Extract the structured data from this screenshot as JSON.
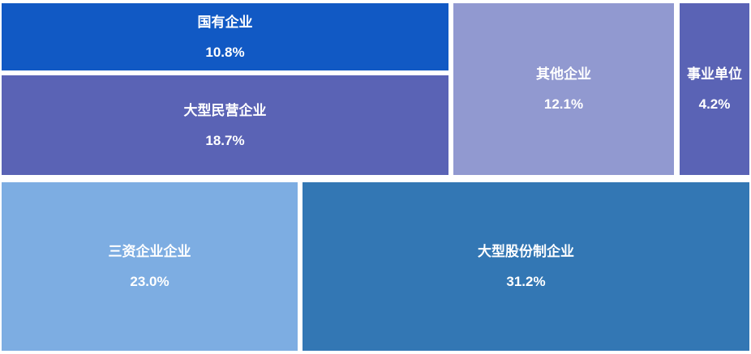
{
  "chart_data": {
    "type": "treemap",
    "title": "",
    "unit": "%",
    "text_color": "#ffffff",
    "background": "#ffffff",
    "items": [
      {
        "label": "国有企业",
        "value": 10.8,
        "value_label": "10.8%",
        "color": "#1159c4"
      },
      {
        "label": "大型民营企业",
        "value": 18.7,
        "value_label": "18.7%",
        "color": "#5a63b5"
      },
      {
        "label": "其他企业",
        "value": 12.1,
        "value_label": "12.1%",
        "color": "#9199d0"
      },
      {
        "label": "事业单位",
        "value": 4.2,
        "value_label": "4.2%",
        "color": "#5a63b5"
      },
      {
        "label": "三资企业企业",
        "value": 23.0,
        "value_label": "23.0%",
        "color": "#7dade2"
      },
      {
        "label": "大型股份制企业",
        "value": 31.2,
        "value_label": "31.2%",
        "color": "#3377b4"
      }
    ]
  }
}
